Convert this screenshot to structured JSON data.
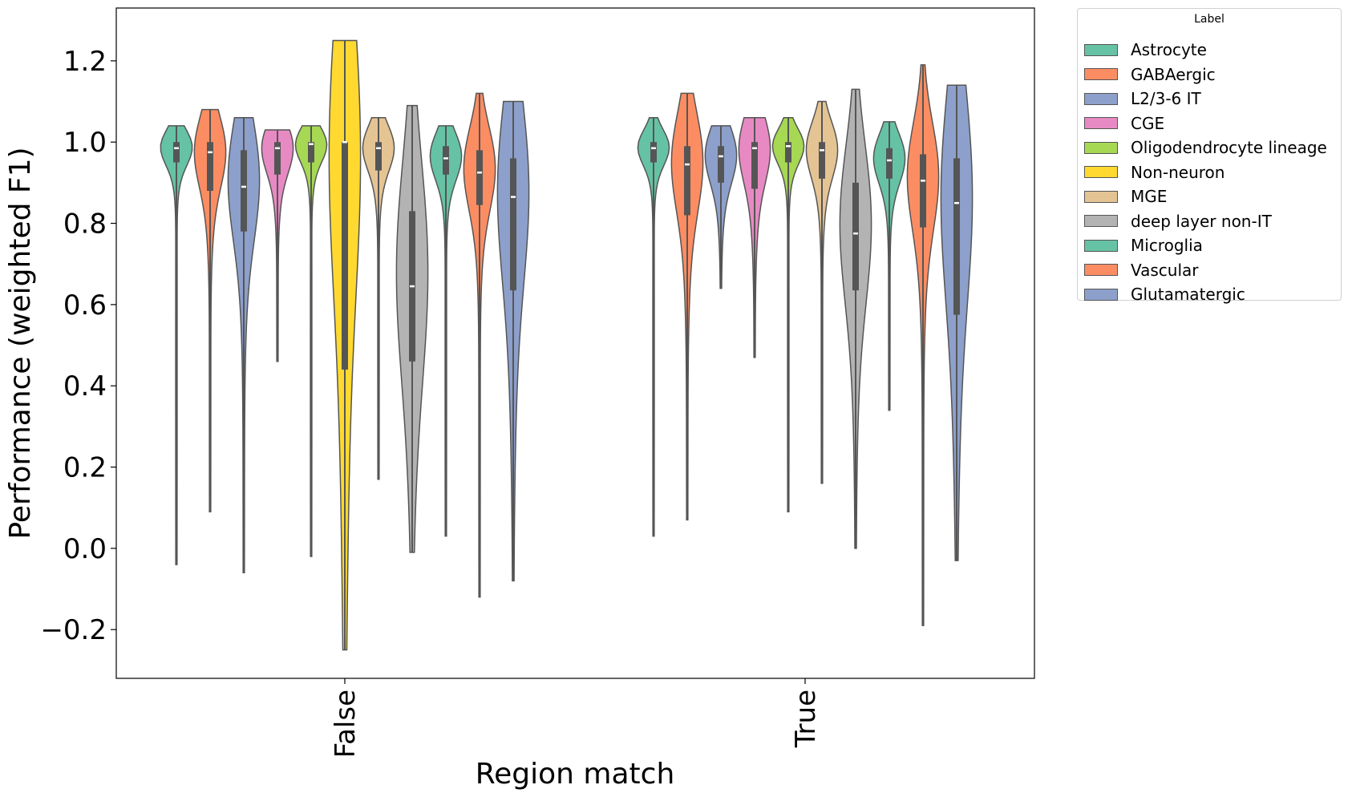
{
  "chart_data": {
    "type": "violin",
    "xlabel": "Region match",
    "ylabel": "Performance (weighted F1)",
    "categories": [
      "False",
      "True"
    ],
    "ylim": [
      -0.32,
      1.33
    ],
    "yticks": [
      -0.2,
      0.0,
      0.2,
      0.4,
      0.6,
      0.8,
      1.0,
      1.2
    ],
    "ytick_labels": [
      "−0.2",
      "0.0",
      "0.2",
      "0.4",
      "0.6",
      "0.8",
      "1.0",
      "1.2"
    ],
    "grid": false,
    "legend": {
      "title": "Label",
      "placement": "outside-top-right"
    },
    "series": [
      {
        "name": "Astrocyte",
        "color": "#66c2a5",
        "stats": [
          {
            "min": -0.04,
            "q1": 0.95,
            "median": 0.985,
            "q3": 1.0,
            "max": 1.04
          },
          {
            "min": 0.03,
            "q1": 0.95,
            "median": 0.985,
            "q3": 1.0,
            "max": 1.06
          }
        ]
      },
      {
        "name": "GABAergic",
        "color": "#fc8d62",
        "stats": [
          {
            "min": 0.09,
            "q1": 0.88,
            "median": 0.975,
            "q3": 1.0,
            "max": 1.08
          },
          {
            "min": 0.07,
            "q1": 0.82,
            "median": 0.945,
            "q3": 0.99,
            "max": 1.12
          }
        ]
      },
      {
        "name": "L2/3-6 IT",
        "color": "#8da0cb",
        "stats": [
          {
            "min": -0.06,
            "q1": 0.78,
            "median": 0.89,
            "q3": 0.98,
            "max": 1.06
          },
          {
            "min": 0.64,
            "q1": 0.9,
            "median": 0.965,
            "q3": 0.99,
            "max": 1.04
          }
        ]
      },
      {
        "name": "CGE",
        "color": "#e78ac3",
        "stats": [
          {
            "min": 0.46,
            "q1": 0.92,
            "median": 0.985,
            "q3": 1.0,
            "max": 1.03
          },
          {
            "min": 0.47,
            "q1": 0.885,
            "median": 0.985,
            "q3": 1.0,
            "max": 1.06
          }
        ]
      },
      {
        "name": "Oligodendrocyte lineage",
        "color": "#a6d854",
        "stats": [
          {
            "min": -0.02,
            "q1": 0.95,
            "median": 0.995,
            "q3": 1.0,
            "max": 1.04
          },
          {
            "min": 0.09,
            "q1": 0.95,
            "median": 0.99,
            "q3": 1.0,
            "max": 1.06
          }
        ]
      },
      {
        "name": "Non-neuron",
        "color": "#ffd92f",
        "stats": [
          {
            "min": -0.25,
            "q1": 0.44,
            "median": 1.0,
            "q3": 1.0,
            "max": 1.25
          },
          null
        ]
      },
      {
        "name": "MGE",
        "color": "#e5c494",
        "stats": [
          {
            "min": 0.17,
            "q1": 0.93,
            "median": 0.985,
            "q3": 1.0,
            "max": 1.06
          },
          {
            "min": 0.16,
            "q1": 0.91,
            "median": 0.98,
            "q3": 1.0,
            "max": 1.1
          }
        ]
      },
      {
        "name": "deep layer non-IT",
        "color": "#b3b3b3",
        "stats": [
          {
            "min": -0.01,
            "q1": 0.46,
            "median": 0.645,
            "q3": 0.83,
            "max": 1.09
          },
          {
            "min": 0.0,
            "q1": 0.635,
            "median": 0.775,
            "q3": 0.9,
            "max": 1.13
          }
        ]
      },
      {
        "name": "Microglia",
        "color": "#66c2a5",
        "stats": [
          {
            "min": 0.03,
            "q1": 0.92,
            "median": 0.96,
            "q3": 0.99,
            "max": 1.04
          },
          {
            "min": 0.34,
            "q1": 0.91,
            "median": 0.955,
            "q3": 0.985,
            "max": 1.05
          }
        ]
      },
      {
        "name": "Vascular",
        "color": "#fc8d62",
        "stats": [
          {
            "min": -0.12,
            "q1": 0.845,
            "median": 0.925,
            "q3": 0.98,
            "max": 1.12
          },
          {
            "min": -0.19,
            "q1": 0.79,
            "median": 0.905,
            "q3": 0.97,
            "max": 1.19
          }
        ]
      },
      {
        "name": "Glutamatergic",
        "color": "#8da0cb",
        "stats": [
          {
            "min": -0.08,
            "q1": 0.635,
            "median": 0.865,
            "q3": 0.96,
            "max": 1.1
          },
          {
            "min": -0.03,
            "q1": 0.575,
            "median": 0.85,
            "q3": 0.96,
            "max": 1.14
          }
        ]
      }
    ]
  }
}
